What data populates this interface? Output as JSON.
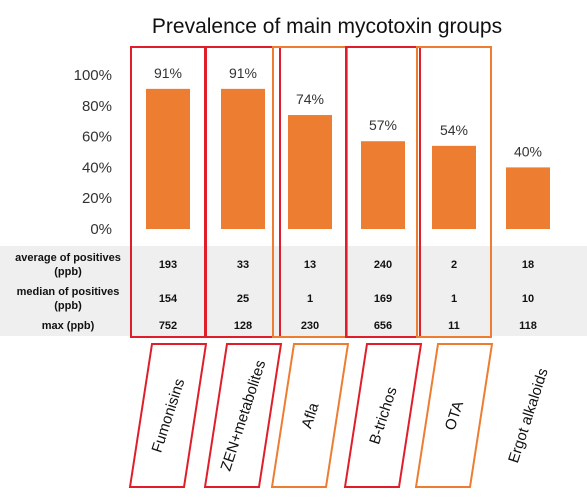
{
  "chart_data": {
    "type": "bar",
    "title": "Prevalence of main mycotoxin groups",
    "categories": [
      "Fumonisins",
      "ZEN+metabolites",
      "Afla",
      "B-trichos",
      "OTA",
      "Ergot alkaloids"
    ],
    "values": [
      91,
      91,
      74,
      57,
      54,
      40
    ],
    "value_labels": [
      "91%",
      "91%",
      "74%",
      "57%",
      "54%",
      "40%"
    ],
    "ylim": [
      0,
      100
    ],
    "yticks": [
      "0%",
      "20%",
      "40%",
      "60%",
      "80%",
      "100%"
    ],
    "ytick_values": [
      0,
      20,
      40,
      60,
      80,
      100
    ],
    "grid": false,
    "bar_color": "#ED7D31",
    "highlight": [
      "red",
      "red",
      "orange",
      "red",
      "orange",
      "none"
    ],
    "highlight_colors": {
      "red": "#E01E2B",
      "orange": "#ED7D31"
    },
    "table": {
      "rows": [
        {
          "label_lines": [
            "average of positives",
            "(ppb)"
          ],
          "values": [
            "193",
            "33",
            "13",
            "240",
            "2",
            "18"
          ]
        },
        {
          "label_lines": [
            "median of positives",
            "(ppb)"
          ],
          "values": [
            "154",
            "25",
            "1",
            "169",
            "1",
            "10"
          ]
        },
        {
          "label_lines": [
            "max (ppb)"
          ],
          "values": [
            "752",
            "128",
            "230",
            "656",
            "11",
            "118"
          ]
        }
      ]
    }
  }
}
